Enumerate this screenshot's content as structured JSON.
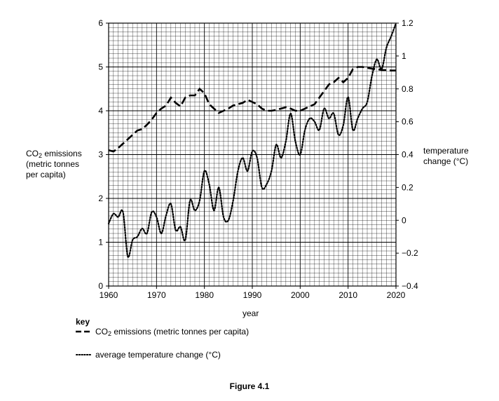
{
  "chart_data": {
    "type": "line",
    "x_label": "year",
    "x_range": [
      1960,
      2020
    ],
    "x_ticks": [
      1960,
      1970,
      1980,
      1990,
      2000,
      2010,
      2020
    ],
    "y_left": {
      "label_line1_prefix": "CO",
      "label_line1_sub": "2",
      "label_line1_suffix": " emissions",
      "label_line2": "(metric tonnes",
      "label_line3": "per capita)",
      "range": [
        0,
        6
      ],
      "ticks": [
        "0",
        "1",
        "2",
        "3",
        "4",
        "5",
        "6"
      ]
    },
    "y_right": {
      "label_line1": "temperature",
      "label_line2": "change (°C)",
      "range": [
        -0.4,
        1.2
      ],
      "ticks": [
        "−0.4",
        "−0.2",
        "0",
        "0.2",
        "0.4",
        "0.6",
        "0.8",
        "1",
        "1.2"
      ]
    },
    "grid": true,
    "series": [
      {
        "name": "CO2 emissions (metric tonnes per capita)",
        "axis": "left",
        "style": "dashed",
        "x": [
          1960,
          1961,
          1962,
          1963,
          1964,
          1965,
          1966,
          1967,
          1968,
          1969,
          1970,
          1971,
          1972,
          1973,
          1974,
          1975,
          1976,
          1977,
          1978,
          1979,
          1980,
          1981,
          1982,
          1983,
          1984,
          1985,
          1986,
          1987,
          1988,
          1989,
          1990,
          1991,
          1992,
          1993,
          1994,
          1995,
          1996,
          1997,
          1998,
          1999,
          2000,
          2001,
          2002,
          2003,
          2004,
          2005,
          2006,
          2007,
          2008,
          2009,
          2010,
          2011,
          2012,
          2013,
          2014,
          2015,
          2016,
          2017,
          2018,
          2019,
          2020
        ],
        "y": [
          3.1,
          3.07,
          3.15,
          3.25,
          3.35,
          3.45,
          3.55,
          3.58,
          3.68,
          3.8,
          3.95,
          4.05,
          4.12,
          4.3,
          4.18,
          4.1,
          4.3,
          4.35,
          4.35,
          4.5,
          4.4,
          4.15,
          4.05,
          3.95,
          4.0,
          4.05,
          4.12,
          4.15,
          4.18,
          4.25,
          4.2,
          4.15,
          4.05,
          4.0,
          4.0,
          4.02,
          4.05,
          4.08,
          4.05,
          4.0,
          4.0,
          4.05,
          4.1,
          4.15,
          4.3,
          4.45,
          4.6,
          4.65,
          4.75,
          4.65,
          4.75,
          4.95,
          5.0,
          5.0,
          4.98,
          4.96,
          4.95,
          4.93,
          4.93,
          4.92,
          4.92
        ]
      },
      {
        "name": "average temperature change (°C)",
        "axis": "right",
        "style": "dotted",
        "x": [
          1960,
          1961,
          1962,
          1963,
          1964,
          1965,
          1966,
          1967,
          1968,
          1969,
          1970,
          1971,
          1972,
          1973,
          1974,
          1975,
          1976,
          1977,
          1978,
          1979,
          1980,
          1981,
          1982,
          1983,
          1984,
          1985,
          1986,
          1987,
          1988,
          1989,
          1990,
          1991,
          1992,
          1993,
          1994,
          1995,
          1996,
          1997,
          1998,
          1999,
          2000,
          2001,
          2002,
          2003,
          2004,
          2005,
          2006,
          2007,
          2008,
          2009,
          2010,
          2011,
          2012,
          2013,
          2014,
          2015,
          2016,
          2017,
          2018,
          2019,
          2020
        ],
        "y": [
          -0.02,
          0.04,
          0.02,
          0.05,
          -0.22,
          -0.12,
          -0.1,
          -0.05,
          -0.08,
          0.05,
          0.02,
          -0.08,
          0.03,
          0.1,
          -0.06,
          -0.04,
          -0.12,
          0.12,
          0.06,
          0.12,
          0.3,
          0.22,
          0.06,
          0.2,
          0.02,
          0.0,
          0.12,
          0.3,
          0.38,
          0.3,
          0.42,
          0.38,
          0.2,
          0.22,
          0.3,
          0.46,
          0.38,
          0.48,
          0.65,
          0.48,
          0.4,
          0.55,
          0.62,
          0.6,
          0.55,
          0.68,
          0.62,
          0.65,
          0.52,
          0.58,
          0.75,
          0.55,
          0.62,
          0.68,
          0.72,
          0.88,
          0.98,
          0.92,
          1.05,
          1.12,
          1.2
        ]
      }
    ]
  },
  "key": {
    "title": "key",
    "co2_prefix": "CO",
    "co2_sub": "2",
    "co2_suffix": " emissions (metric tonnes per capita)",
    "temp_label": "average temperature change (°C)"
  },
  "caption": "Figure 4.1",
  "colors": {
    "ink": "#000000",
    "grid": "#000000",
    "background": "#ffffff"
  }
}
